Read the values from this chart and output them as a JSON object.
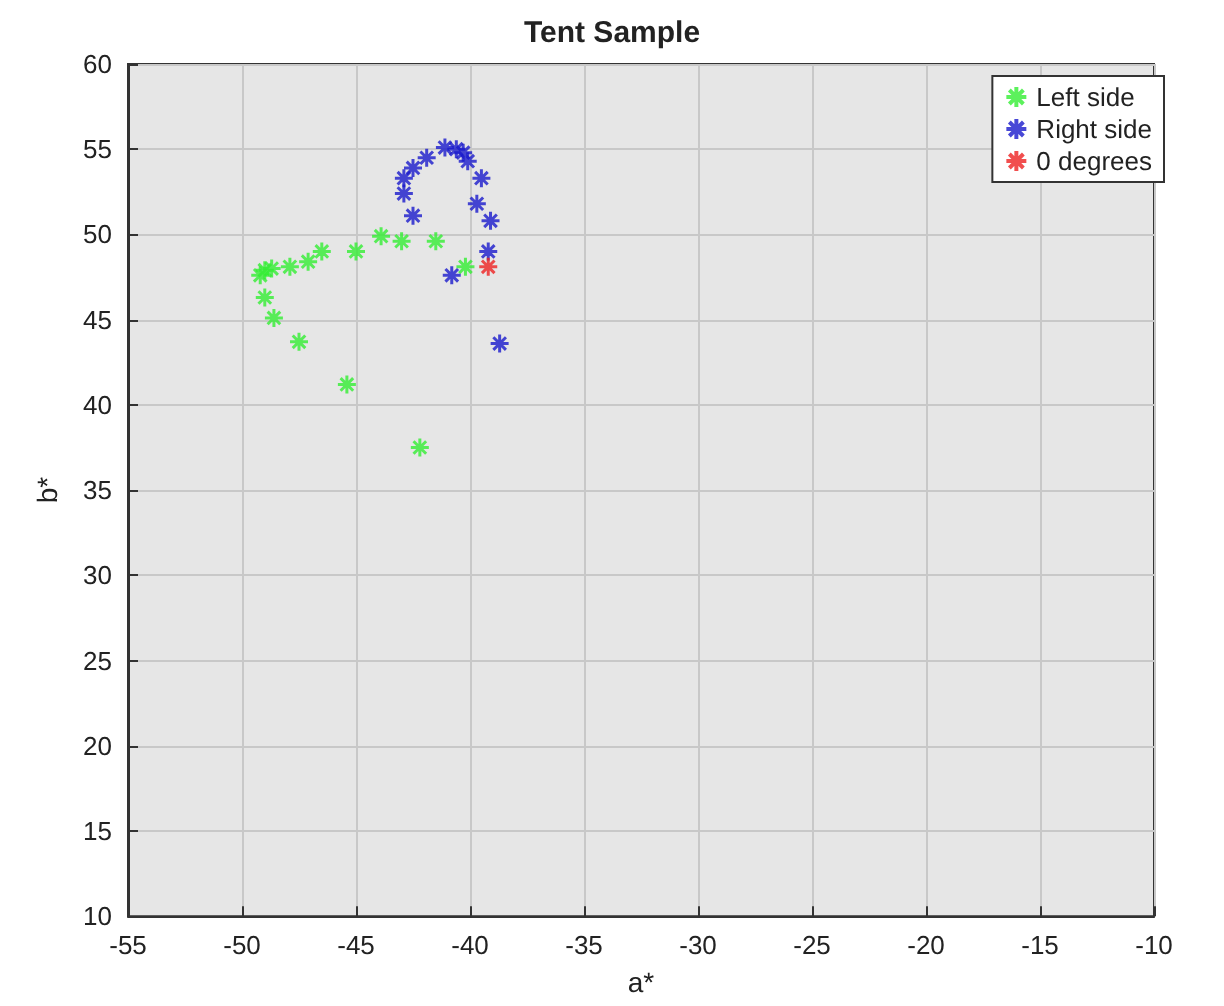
{
  "chart_data": {
    "type": "scatter",
    "title": "Tent Sample",
    "xlabel": "a*",
    "ylabel": "b*",
    "xlim": [
      -55,
      -10
    ],
    "xticks": [
      -55,
      -50,
      -45,
      -40,
      -35,
      -30,
      -25,
      -20,
      -15,
      -10
    ],
    "ylim": [
      10,
      60
    ],
    "yticks": [
      10,
      15,
      20,
      25,
      30,
      35,
      40,
      45,
      50,
      55,
      60
    ],
    "grid": true,
    "legend": "top right",
    "marker": "cross",
    "series": [
      {
        "name": "Left side",
        "color": "#33ee33",
        "x": [
          -49.2,
          -49.0,
          -48.7,
          -47.9,
          -47.1,
          -46.5,
          -45.0,
          -43.9,
          -43.0,
          -41.5,
          -40.2,
          -49.0,
          -48.6,
          -47.5,
          -45.4,
          -42.2
        ],
        "values": [
          47.6,
          47.9,
          48.0,
          48.1,
          48.4,
          49.0,
          49.0,
          49.9,
          49.6,
          49.6,
          48.1,
          46.3,
          45.1,
          43.7,
          41.2,
          37.5
        ]
      },
      {
        "name": "Right side",
        "color": "#1a1acc",
        "x": [
          -42.9,
          -42.9,
          -42.5,
          -42.5,
          -41.9,
          -41.1,
          -40.6,
          -40.3,
          -40.1,
          -39.5,
          -39.7,
          -39.1,
          -39.2,
          -40.8,
          -38.7
        ],
        "values": [
          53.3,
          52.4,
          51.1,
          53.9,
          54.5,
          55.1,
          55.0,
          54.8,
          54.3,
          53.3,
          51.8,
          50.8,
          49.0,
          47.6,
          43.6
        ]
      },
      {
        "name": "0 degrees",
        "color": "#ee2222",
        "x": [
          -39.2
        ],
        "values": [
          48.1
        ]
      }
    ]
  }
}
